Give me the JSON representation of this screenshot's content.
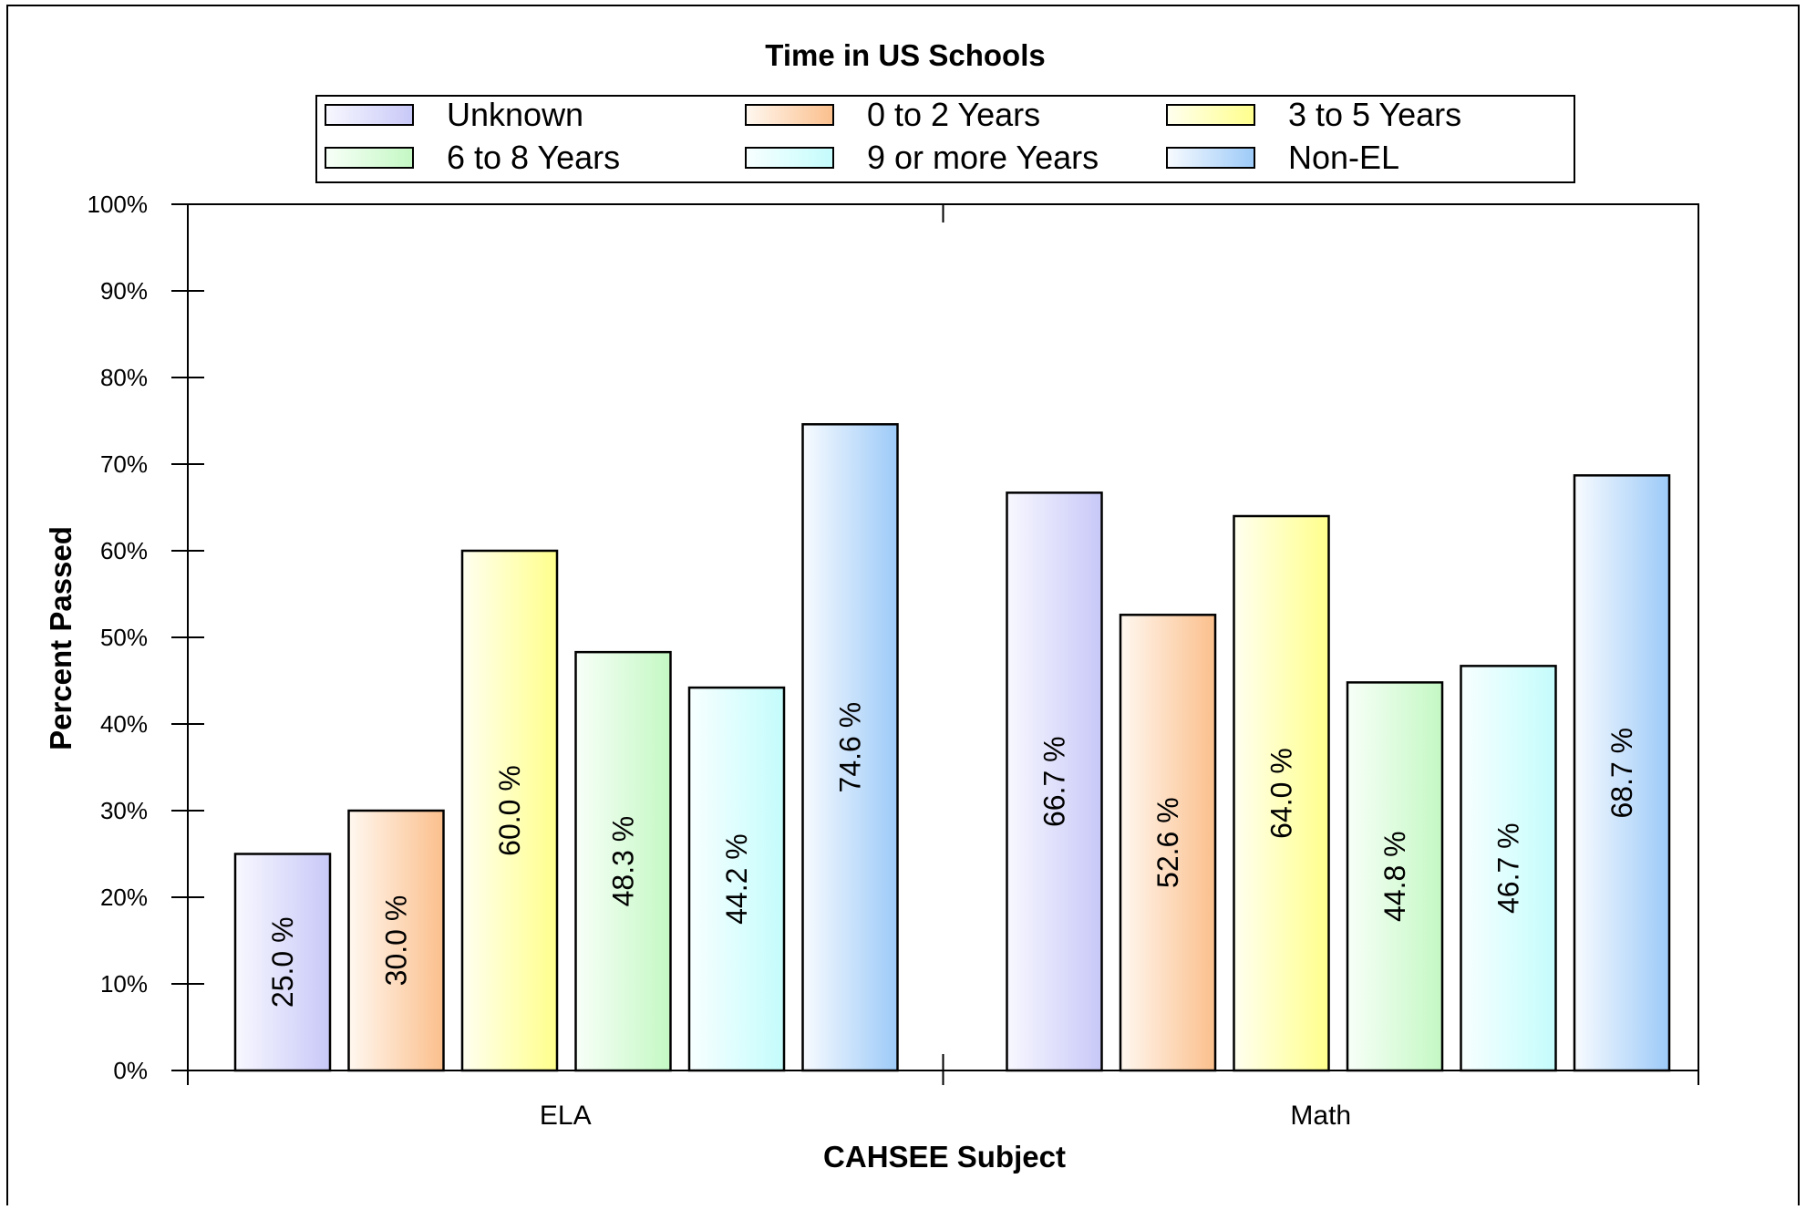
{
  "chart_data": {
    "type": "bar",
    "title": "Time in US Schools",
    "xlabel": "CAHSEE Subject",
    "ylabel": "Percent Passed",
    "categories": [
      "ELA",
      "Math"
    ],
    "ylim": [
      0,
      100
    ],
    "yticks": [
      "0%",
      "10%",
      "20%",
      "30%",
      "40%",
      "50%",
      "60%",
      "70%",
      "80%",
      "90%",
      "100%"
    ],
    "grid": false,
    "legend_position": "top",
    "series": [
      {
        "name": "Unknown",
        "values": [
          25.0,
          66.7
        ],
        "labels": [
          "25.0 %",
          "66.7 %"
        ],
        "color_light": "#f8f8ff",
        "color_dark": "#c8c8f8"
      },
      {
        "name": "0 to 2 Years",
        "values": [
          30.0,
          52.6
        ],
        "labels": [
          "30.0 %",
          "52.6 %"
        ],
        "color_light": "#fff8f0",
        "color_dark": "#fbbf8c"
      },
      {
        "name": "3 to 5 Years",
        "values": [
          60.0,
          64.0
        ],
        "labels": [
          "60.0 %",
          "64.0 %"
        ],
        "color_light": "#fffff0",
        "color_dark": "#ffff8c"
      },
      {
        "name": "6 to 8 Years",
        "values": [
          48.3,
          44.8
        ],
        "labels": [
          "48.3 %",
          "44.8 %"
        ],
        "color_light": "#f8fff8",
        "color_dark": "#c4f8c4"
      },
      {
        "name": "9 or more Years",
        "values": [
          44.2,
          46.7
        ],
        "labels": [
          "44.2 %",
          "46.7 %"
        ],
        "color_light": "#f8ffff",
        "color_dark": "#c4fcfc"
      },
      {
        "name": "Non-EL",
        "values": [
          74.6,
          68.7
        ],
        "labels": [
          "74.6 %",
          "68.7 %"
        ],
        "color_light": "#f8fbff",
        "color_dark": "#9ccaf8"
      }
    ]
  }
}
